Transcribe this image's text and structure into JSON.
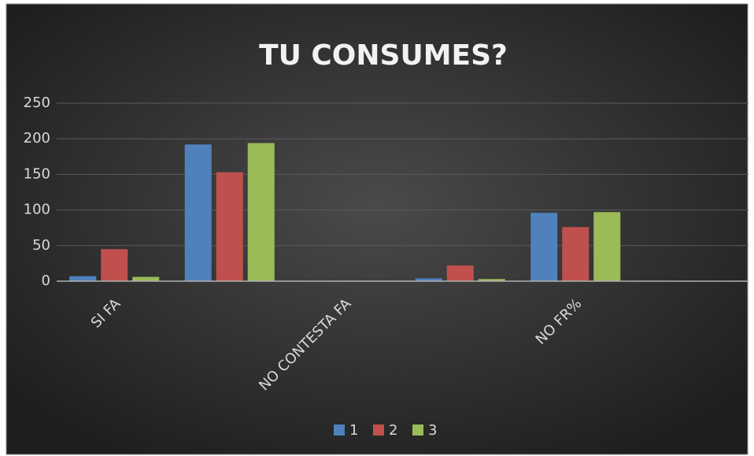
{
  "chart_data": {
    "type": "bar",
    "title": "TU CONSUMES?",
    "categories": [
      "SI FA",
      null,
      "NO CONTESTA FA",
      null,
      "NO FR%",
      null
    ],
    "series": [
      {
        "name": "1",
        "color": "#4f81bd",
        "values": [
          7,
          192,
          0,
          4,
          96,
          0
        ]
      },
      {
        "name": "2",
        "color": "#c0504d",
        "values": [
          45,
          153,
          0,
          22,
          76,
          0
        ]
      },
      {
        "name": "3",
        "color": "#9bbb59",
        "values": [
          6,
          194,
          0,
          3,
          97,
          0
        ]
      }
    ],
    "ylim": [
      0,
      250
    ],
    "yticks": [
      0,
      50,
      100,
      150,
      200,
      250
    ],
    "grid": true,
    "legend": "bottom"
  }
}
